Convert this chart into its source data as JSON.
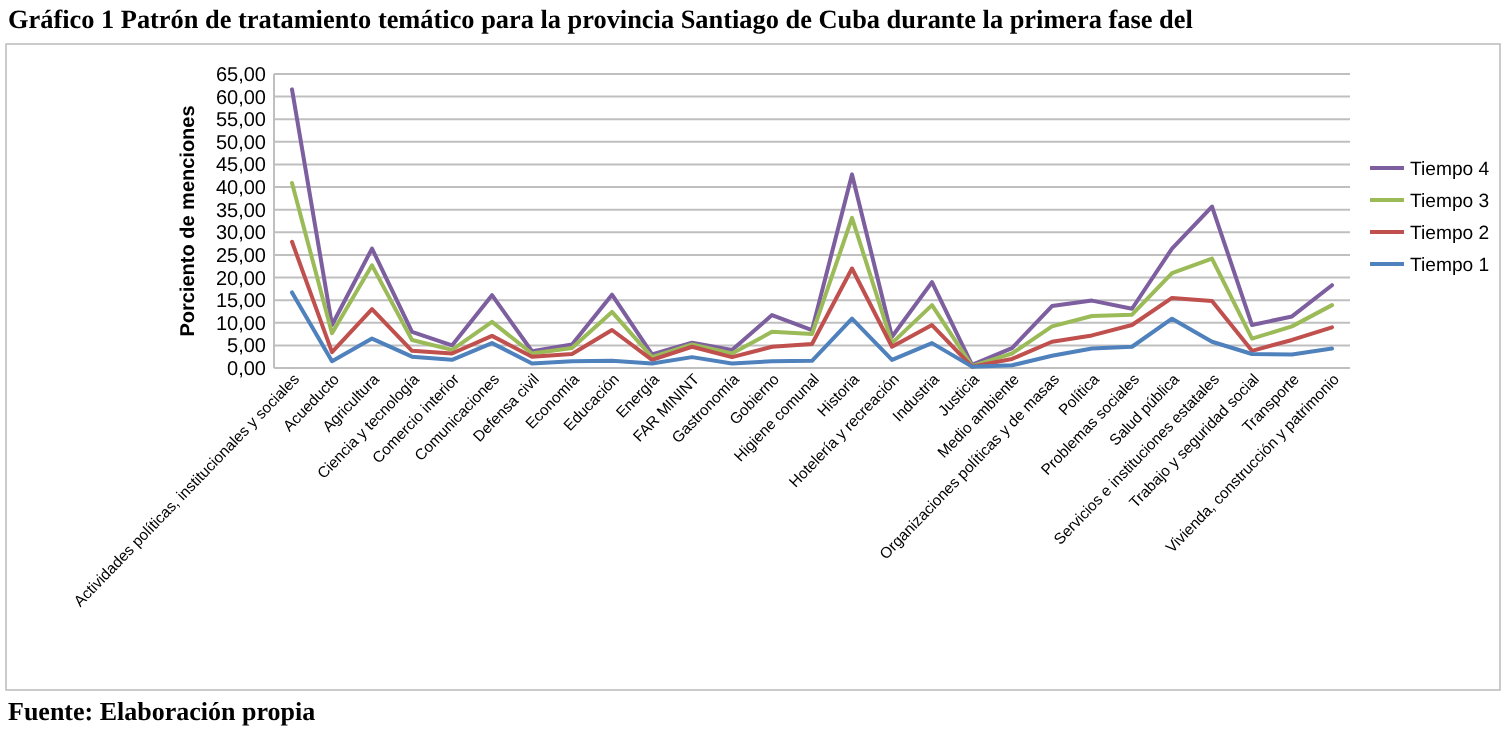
{
  "chart_data": {
    "type": "line",
    "title": "Gráfico 1 Patrón de tratamiento temático para la provincia Santiago de Cuba durante la primera fase del",
    "ylabel": "Porciento de menciones",
    "annotations": [
      "Fuente: Elaboración propia"
    ],
    "categories": [
      "Actividades políticas, institucionales y sociales",
      "Acueducto",
      "Agricultura",
      "Ciencia y tecnología",
      "Comercio interior",
      "Comunicaciones",
      "Defensa civil",
      "Economía",
      "Educación",
      "Energía",
      "FAR MININT",
      "Gastronomía",
      "Gobierno",
      "Higiene comunal",
      "Historia",
      "Hotelería y recreación",
      "Industria",
      "Justicia",
      "Medio ambiente",
      "Organizaciones políticas y de masas",
      "Política",
      "Problemas sociales",
      "Salud pública",
      "Servicios e instituciones estatales",
      "Trabajo y seguridad social",
      "Transporte",
      "Vivienda, construcción y patrimonio"
    ],
    "series": [
      {
        "name": "Tiempo 4",
        "color": "#7d5fa0",
        "values": [
          61.6,
          9.5,
          26.4,
          8,
          5,
          16.1,
          3.7,
          5.2,
          16.2,
          3,
          5.6,
          4,
          11.7,
          8.4,
          42.8,
          6.9,
          19,
          0.7,
          4.4,
          13.7,
          14.9,
          13.1,
          26.4,
          35.7,
          9.5,
          11.4,
          18.3
        ]
      },
      {
        "name": "Tiempo 3",
        "color": "#9bbb59",
        "values": [
          40.9,
          7.7,
          22.7,
          6.2,
          4,
          10.2,
          3.2,
          4.4,
          12.4,
          2.4,
          5.2,
          3.2,
          8,
          7.5,
          33.2,
          5.5,
          13.9,
          0.4,
          3.2,
          9.2,
          11.5,
          11.8,
          21,
          24.2,
          6.5,
          9.2,
          13.9
        ]
      },
      {
        "name": "Tiempo 2",
        "color": "#c0504d",
        "values": [
          27.9,
          3.5,
          13,
          3.8,
          3.2,
          7.1,
          2.5,
          3.1,
          8.4,
          1.8,
          4.7,
          2.4,
          4.7,
          5.3,
          22,
          4.7,
          9.5,
          0.3,
          2,
          5.8,
          7.2,
          9.5,
          15.5,
          14.8,
          3.8,
          6.2,
          9
        ]
      },
      {
        "name": "Tiempo 1",
        "color": "#4f81bd",
        "values": [
          16.7,
          1.5,
          6.5,
          2.5,
          1.8,
          5.5,
          1,
          1.5,
          1.6,
          1,
          2.4,
          1,
          1.5,
          1.6,
          10.9,
          1.8,
          5.5,
          0.3,
          0.6,
          2.7,
          4.3,
          4.7,
          10.9,
          5.8,
          3.1,
          3,
          4.3
        ]
      }
    ],
    "ylim": [
      0,
      65
    ],
    "yticks": [
      {
        "value": 0,
        "label": "0,00"
      },
      {
        "value": 5,
        "label": "5,00"
      },
      {
        "value": 10,
        "label": "10,00"
      },
      {
        "value": 15,
        "label": "15,00"
      },
      {
        "value": 20,
        "label": "20,00"
      },
      {
        "value": 25,
        "label": "25,00"
      },
      {
        "value": 30,
        "label": "30,00"
      },
      {
        "value": 35,
        "label": "35,00"
      },
      {
        "value": 40,
        "label": "40,00"
      },
      {
        "value": 45,
        "label": "45,00"
      },
      {
        "value": 50,
        "label": "50,00"
      },
      {
        "value": 55,
        "label": "55,00"
      },
      {
        "value": 60,
        "label": "60,00"
      },
      {
        "value": 65,
        "label": "65,00"
      }
    ],
    "grid": "y",
    "legend": "right",
    "marker": "none",
    "line_style": "solid"
  }
}
